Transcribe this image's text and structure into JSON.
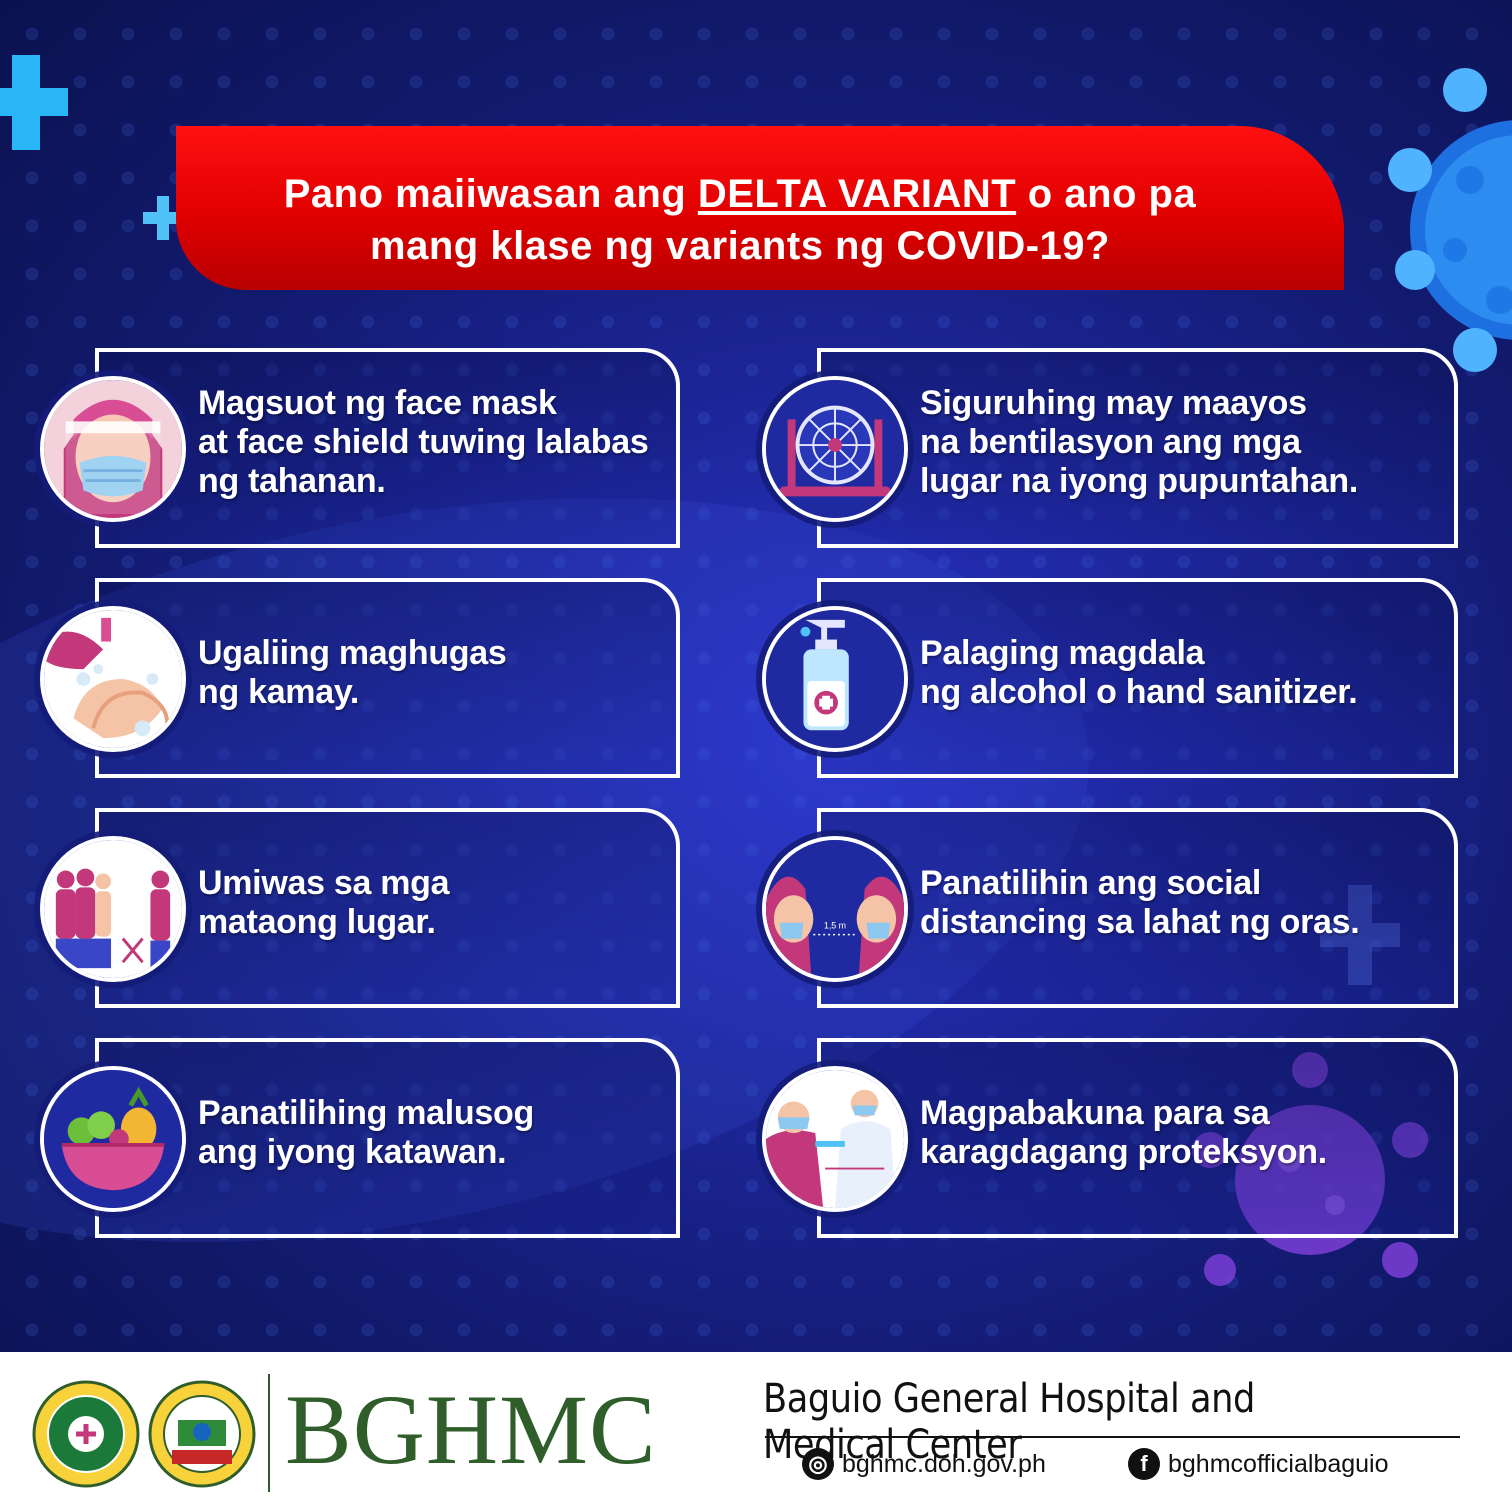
{
  "title": {
    "part1": "Pano maiiwasan ang ",
    "highlight": "DELTA VARIANT",
    "part2": " o ano pa",
    "line2": "mang klase ng variants ng COVID-19?"
  },
  "tips": [
    {
      "lines": [
        "Magsuot ng face mask",
        "at face shield tuwing lalabas",
        "ng tahanan."
      ],
      "icon": "face-mask-shield-icon"
    },
    {
      "lines": [
        "Siguruhing may maayos",
        "na bentilasyon ang mga",
        "lugar na iyong pupuntahan."
      ],
      "icon": "fan-ventilation-icon"
    },
    {
      "lines": [
        "Ugaliing maghugas",
        "ng kamay."
      ],
      "icon": "hand-washing-icon"
    },
    {
      "lines": [
        "Palaging magdala",
        "ng alcohol o hand sanitizer."
      ],
      "icon": "hand-sanitizer-icon"
    },
    {
      "lines": [
        "Umiwas sa mga",
        "mataong lugar."
      ],
      "icon": "crowd-avoid-icon"
    },
    {
      "lines": [
        "Panatilihin ang social",
        "distancing sa lahat ng oras."
      ],
      "icon": "social-distancing-icon",
      "distance_label": "1,5 m"
    },
    {
      "lines": [
        "Panatilihing malusog",
        "ang iyong katawan."
      ],
      "icon": "healthy-food-bowl-icon"
    },
    {
      "lines": [
        "Magpabakuna para sa",
        "karagdagang proteksyon."
      ],
      "icon": "vaccination-icon"
    }
  ],
  "footer": {
    "brand": "BGHMC",
    "hospital_name": "Baguio General Hospital and Medical Center",
    "website": "bghmc.doh.gov.ph",
    "facebook": "bghmcofficialbaguio"
  },
  "colors": {
    "banner_red": "#e00000",
    "background_blue": "#1c2596",
    "brand_green": "#2f5e2a",
    "accent_pink": "#c2387a",
    "accent_cyan": "#29b6f6"
  }
}
